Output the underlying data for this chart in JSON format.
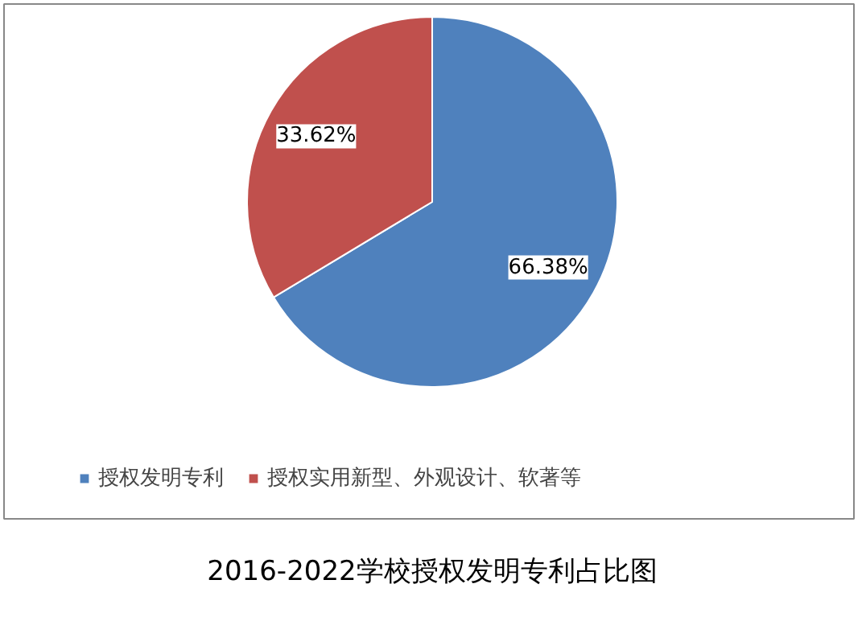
{
  "chart_data": {
    "type": "pie",
    "title": "2016-2022学校授权发明专利占比图",
    "categories": [
      "授权发明专利",
      "授权实用新型、外观设计、软著等"
    ],
    "values": [
      66.38,
      33.62
    ],
    "colors": [
      "#4f81bd",
      "#c0504d"
    ],
    "value_labels": [
      "66.38%",
      "33.62%"
    ],
    "legend": "bottom"
  }
}
